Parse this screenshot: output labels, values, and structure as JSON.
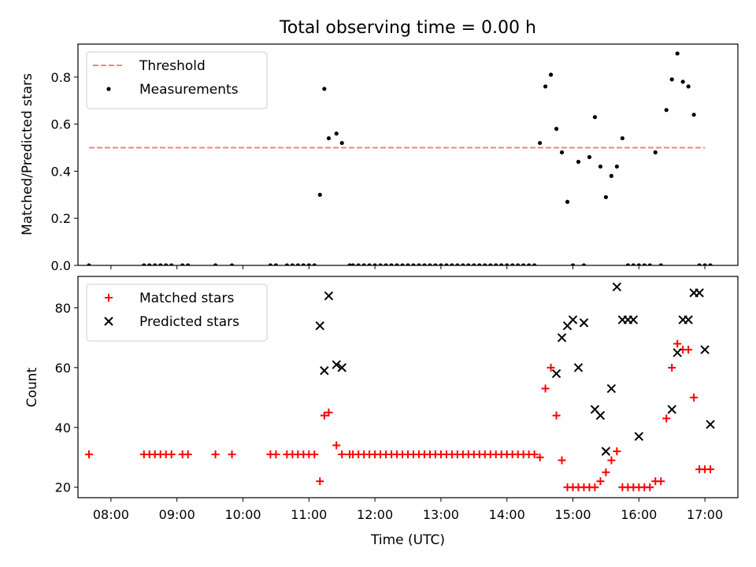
{
  "chart_data": [
    {
      "type": "scatter",
      "title": "Total observing time = 0.00 h",
      "ylabel": "Matched/Predicted stars",
      "xlabel": "",
      "xlim": [
        "07:30",
        "17:30"
      ],
      "ylim": [
        0,
        0.94
      ],
      "yticks": [
        "0.0",
        "0.2",
        "0.4",
        "0.6",
        "0.8"
      ],
      "legend": "top-left",
      "threshold": {
        "name": "Threshold",
        "value": 0.5,
        "x_range": [
          "07:40",
          "17:00"
        ],
        "color": "#ff7f7f"
      },
      "series": [
        {
          "name": "Measurements",
          "color": "#000000",
          "x": [
            "07:40",
            "08:30",
            "08:35",
            "08:40",
            "08:45",
            "08:50",
            "08:55",
            "09:05",
            "09:10",
            "09:35",
            "09:50",
            "10:25",
            "10:30",
            "10:40",
            "10:45",
            "10:50",
            "10:55",
            "11:00",
            "11:05",
            "11:10",
            "11:14",
            "11:18",
            "11:25",
            "11:30",
            "11:37",
            "11:40",
            "11:45",
            "11:50",
            "11:55",
            "12:00",
            "12:05",
            "12:10",
            "12:15",
            "12:20",
            "12:25",
            "12:30",
            "12:35",
            "12:40",
            "12:45",
            "12:50",
            "12:55",
            "13:00",
            "13:05",
            "13:10",
            "13:15",
            "13:20",
            "13:25",
            "13:30",
            "13:35",
            "13:40",
            "13:45",
            "13:50",
            "13:55",
            "14:00",
            "14:05",
            "14:10",
            "14:15",
            "14:20",
            "14:25",
            "14:30",
            "14:35",
            "14:40",
            "14:45",
            "14:50",
            "14:55",
            "15:00",
            "15:05",
            "15:10",
            "15:15",
            "15:20",
            "15:25",
            "15:30",
            "15:35",
            "15:40",
            "15:45",
            "15:50",
            "15:55",
            "16:00",
            "16:05",
            "16:10",
            "16:15",
            "16:20",
            "16:25",
            "16:30",
            "16:35",
            "16:40",
            "16:45",
            "16:50",
            "16:55",
            "17:00",
            "17:05"
          ],
          "y": [
            0,
            0,
            0,
            0,
            0,
            0,
            0,
            0,
            0,
            0,
            0,
            0,
            0,
            0,
            0,
            0,
            0,
            0,
            0,
            0.3,
            0.75,
            0.54,
            0.56,
            0.52,
            0,
            0,
            0,
            0,
            0,
            0,
            0,
            0,
            0,
            0,
            0,
            0,
            0,
            0,
            0,
            0,
            0,
            0,
            0,
            0,
            0,
            0,
            0,
            0,
            0,
            0,
            0,
            0,
            0,
            0,
            0,
            0,
            0,
            0,
            0,
            0.52,
            0.76,
            0.81,
            0.58,
            0.48,
            0.27,
            0,
            0.44,
            0,
            0.46,
            0.63,
            0.42,
            0.29,
            0.38,
            0.42,
            0.54,
            0,
            0,
            0,
            0,
            0,
            0.48,
            0,
            0.66,
            0.79,
            0.9,
            0.78,
            0.76,
            0.64,
            0,
            0,
            0
          ]
        }
      ]
    },
    {
      "type": "scatter",
      "title": "",
      "ylabel": "Count",
      "xlabel": "Time (UTC)",
      "xlim": [
        "07:30",
        "17:30"
      ],
      "ylim": [
        16.5,
        90.5
      ],
      "yticks": [
        "20",
        "40",
        "60",
        "80"
      ],
      "xticks": [
        "08:00",
        "09:00",
        "10:00",
        "11:00",
        "12:00",
        "13:00",
        "14:00",
        "15:00",
        "16:00",
        "17:00"
      ],
      "legend": "top-left",
      "series": [
        {
          "name": "Matched stars",
          "color": "#ff0000",
          "marker": "plus",
          "x": [
            "07:40",
            "08:30",
            "08:35",
            "08:40",
            "08:45",
            "08:50",
            "08:55",
            "09:05",
            "09:10",
            "09:35",
            "09:50",
            "10:25",
            "10:30",
            "10:40",
            "10:45",
            "10:50",
            "10:55",
            "11:00",
            "11:05",
            "11:10",
            "11:14",
            "11:18",
            "11:25",
            "11:30",
            "11:37",
            "11:40",
            "11:45",
            "11:50",
            "11:55",
            "12:00",
            "12:05",
            "12:10",
            "12:15",
            "12:20",
            "12:25",
            "12:30",
            "12:35",
            "12:40",
            "12:45",
            "12:50",
            "12:55",
            "13:00",
            "13:05",
            "13:10",
            "13:15",
            "13:20",
            "13:25",
            "13:30",
            "13:35",
            "13:40",
            "13:45",
            "13:50",
            "13:55",
            "14:00",
            "14:05",
            "14:10",
            "14:15",
            "14:20",
            "14:25",
            "14:30",
            "14:35",
            "14:40",
            "14:45",
            "14:50",
            "14:55",
            "15:00",
            "15:05",
            "15:10",
            "15:15",
            "15:20",
            "15:25",
            "15:30",
            "15:35",
            "15:40",
            "15:45",
            "15:50",
            "15:55",
            "16:00",
            "16:05",
            "16:10",
            "16:15",
            "16:20",
            "16:25",
            "16:30",
            "16:35",
            "16:40",
            "16:45",
            "16:50",
            "16:55",
            "17:00",
            "17:05"
          ],
          "y": [
            31,
            31,
            31,
            31,
            31,
            31,
            31,
            31,
            31,
            31,
            31,
            31,
            31,
            31,
            31,
            31,
            31,
            31,
            31,
            22,
            44,
            45,
            34,
            31,
            31,
            31,
            31,
            31,
            31,
            31,
            31,
            31,
            31,
            31,
            31,
            31,
            31,
            31,
            31,
            31,
            31,
            31,
            31,
            31,
            31,
            31,
            31,
            31,
            31,
            31,
            31,
            31,
            31,
            31,
            31,
            31,
            31,
            31,
            31,
            30,
            53,
            60,
            44,
            29,
            20,
            20,
            20,
            20,
            20,
            20,
            22,
            25,
            29,
            32,
            20,
            20,
            20,
            20,
            20,
            20,
            22,
            22,
            43,
            60,
            68,
            66,
            66,
            50,
            26,
            26,
            26
          ]
        },
        {
          "name": "Predicted stars",
          "color": "#000000",
          "marker": "x",
          "x": [
            "11:10",
            "11:14",
            "11:18",
            "11:25",
            "11:30",
            "14:45",
            "14:50",
            "14:55",
            "15:00",
            "15:05",
            "15:10",
            "15:20",
            "15:25",
            "15:30",
            "15:35",
            "15:40",
            "15:45",
            "15:50",
            "15:55",
            "16:00",
            "16:30",
            "16:35",
            "16:40",
            "16:45",
            "16:50",
            "16:55",
            "17:00",
            "17:05"
          ],
          "y": [
            74,
            59,
            84,
            61,
            60,
            58,
            70,
            74,
            76,
            60,
            75,
            46,
            44,
            32,
            53,
            87,
            76,
            76,
            76,
            37,
            46,
            65,
            76,
            76,
            85,
            85,
            66,
            41
          ]
        }
      ]
    }
  ]
}
